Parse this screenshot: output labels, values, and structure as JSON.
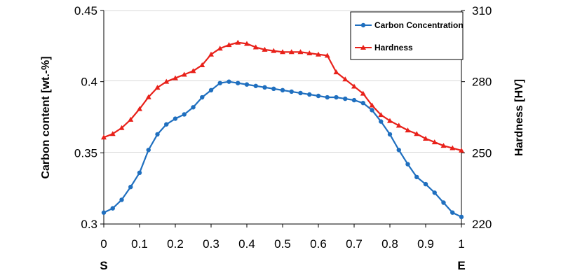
{
  "chart_data": {
    "type": "line",
    "title": "",
    "xlabel": "",
    "ylabel_left": "Carbon content [wt.-%]",
    "ylabel_right": "Hardness [HV]",
    "x_start_label": "S",
    "x_end_label": "E",
    "xlim": [
      0,
      1
    ],
    "ylim_left": [
      0.3,
      0.45
    ],
    "ylim_right": [
      220,
      310
    ],
    "x_ticks": [
      "0",
      "0.1",
      "0.2",
      "0.3",
      "0.4",
      "0.5",
      "0.6",
      "0.7",
      "0.8",
      "0.9",
      "1"
    ],
    "y_ticks_left": [
      "0.3",
      "0.35",
      "0.4",
      "0.45"
    ],
    "y_ticks_right": [
      "220",
      "250",
      "280",
      "310"
    ],
    "grid": "horizontal",
    "legend_position": "top-right",
    "series": [
      {
        "name": "Carbon Concentration",
        "axis": "left",
        "color": "#1F6FBF",
        "marker": "circle",
        "x": [
          0.0,
          0.025,
          0.05,
          0.075,
          0.1,
          0.125,
          0.15,
          0.175,
          0.2,
          0.225,
          0.25,
          0.275,
          0.3,
          0.325,
          0.35,
          0.375,
          0.4,
          0.425,
          0.45,
          0.475,
          0.5,
          0.525,
          0.55,
          0.575,
          0.6,
          0.625,
          0.65,
          0.675,
          0.7,
          0.725,
          0.75,
          0.775,
          0.8,
          0.825,
          0.85,
          0.875,
          0.9,
          0.925,
          0.95,
          0.975,
          1.0
        ],
        "values": [
          0.308,
          0.311,
          0.317,
          0.326,
          0.336,
          0.352,
          0.363,
          0.37,
          0.374,
          0.377,
          0.382,
          0.389,
          0.394,
          0.399,
          0.4,
          0.399,
          0.398,
          0.397,
          0.396,
          0.395,
          0.394,
          0.393,
          0.392,
          0.391,
          0.39,
          0.389,
          0.389,
          0.388,
          0.387,
          0.385,
          0.38,
          0.372,
          0.363,
          0.352,
          0.342,
          0.333,
          0.328,
          0.322,
          0.315,
          0.308,
          0.305
        ]
      },
      {
        "name": "Hardness",
        "axis": "right",
        "color": "#E8211A",
        "marker": "triangle",
        "x": [
          0.0,
          0.025,
          0.05,
          0.075,
          0.1,
          0.125,
          0.15,
          0.175,
          0.2,
          0.225,
          0.25,
          0.275,
          0.3,
          0.325,
          0.35,
          0.375,
          0.4,
          0.425,
          0.45,
          0.475,
          0.5,
          0.525,
          0.55,
          0.575,
          0.6,
          0.625,
          0.65,
          0.675,
          0.7,
          0.725,
          0.75,
          0.775,
          0.8,
          0.825,
          0.85,
          0.875,
          0.9,
          0.925,
          0.95,
          0.975,
          1.0
        ],
        "values": [
          256.5,
          258.0,
          260.5,
          264.0,
          268.5,
          273.5,
          277.5,
          280.0,
          281.5,
          283.0,
          284.5,
          287.0,
          291.5,
          294.0,
          295.5,
          296.5,
          296.0,
          294.5,
          293.5,
          293.0,
          292.5,
          292.5,
          292.5,
          292.0,
          291.5,
          291.0,
          284.0,
          281.0,
          278.0,
          275.0,
          270.0,
          266.0,
          263.5,
          261.5,
          259.5,
          258.0,
          256.0,
          254.5,
          253.0,
          252.0,
          251.0
        ]
      }
    ]
  }
}
